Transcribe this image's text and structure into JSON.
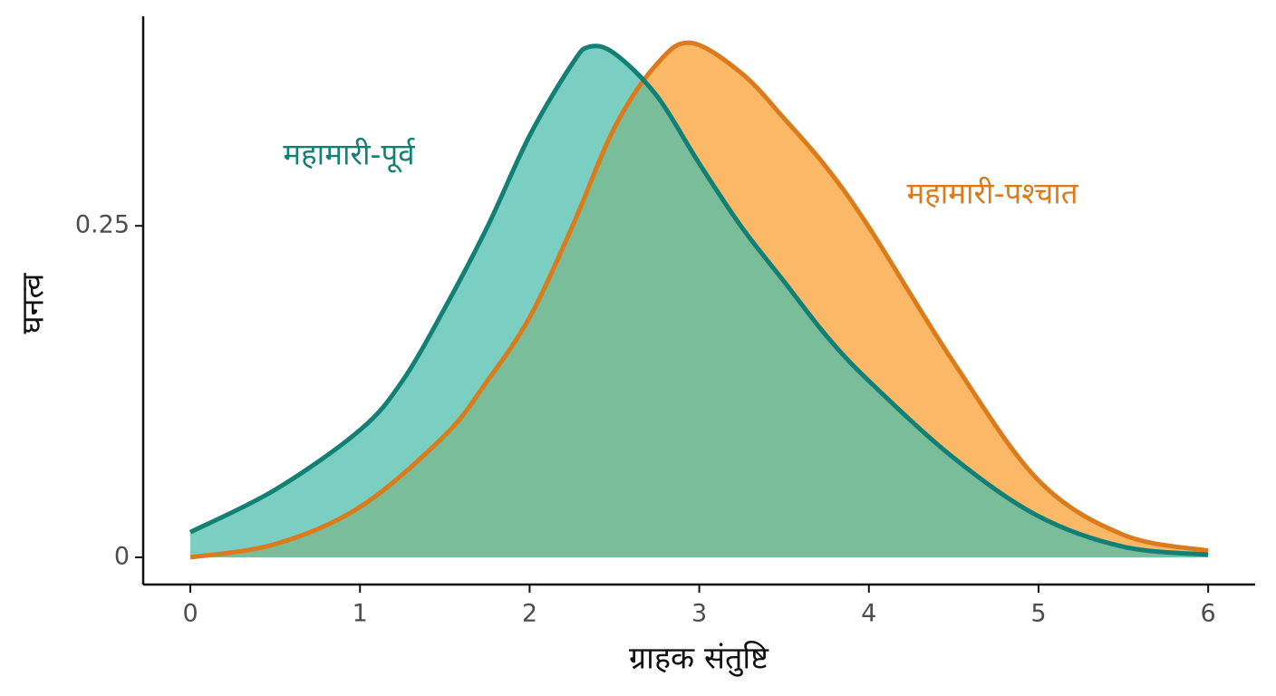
{
  "chart_data": {
    "type": "area",
    "x_label": "ग्राहक संतुष्टि",
    "y_label": "घनत्व",
    "xlim": [
      -0.278,
      6.277
    ],
    "ylim": [
      -0.0205,
      0.408
    ],
    "xticks": [
      0,
      1,
      2,
      3,
      4,
      5,
      6
    ],
    "yticks": [
      0,
      0.25
    ],
    "grid": false,
    "series": [
      {
        "name": "महामारी-पश्चात",
        "color": "#db7b1c",
        "fill": "#fbb055",
        "x": [
          0,
          0.5,
          1,
          1.5,
          1.75,
          2,
          2.25,
          2.5,
          2.75,
          2.95,
          3.25,
          3.5,
          3.75,
          4,
          4.5,
          5,
          5.5,
          6
        ],
        "values": [
          0,
          0.01,
          0.038,
          0.092,
          0.133,
          0.181,
          0.249,
          0.324,
          0.372,
          0.388,
          0.365,
          0.331,
          0.294,
          0.249,
          0.147,
          0.058,
          0.017,
          0.005
        ]
      },
      {
        "name": "महामारी-पूर्व",
        "color": "#138076",
        "fill": "#4fbfad",
        "x": [
          0,
          0.5,
          1,
          1.25,
          1.5,
          1.75,
          2,
          2.25,
          2.35,
          2.5,
          2.75,
          3,
          3.25,
          3.5,
          3.75,
          4,
          4.5,
          5,
          5.5,
          6
        ],
        "values": [
          0.019,
          0.051,
          0.096,
          0.133,
          0.188,
          0.249,
          0.318,
          0.372,
          0.385,
          0.38,
          0.348,
          0.297,
          0.249,
          0.208,
          0.167,
          0.133,
          0.075,
          0.031,
          0.008,
          0.002
        ]
      }
    ]
  }
}
